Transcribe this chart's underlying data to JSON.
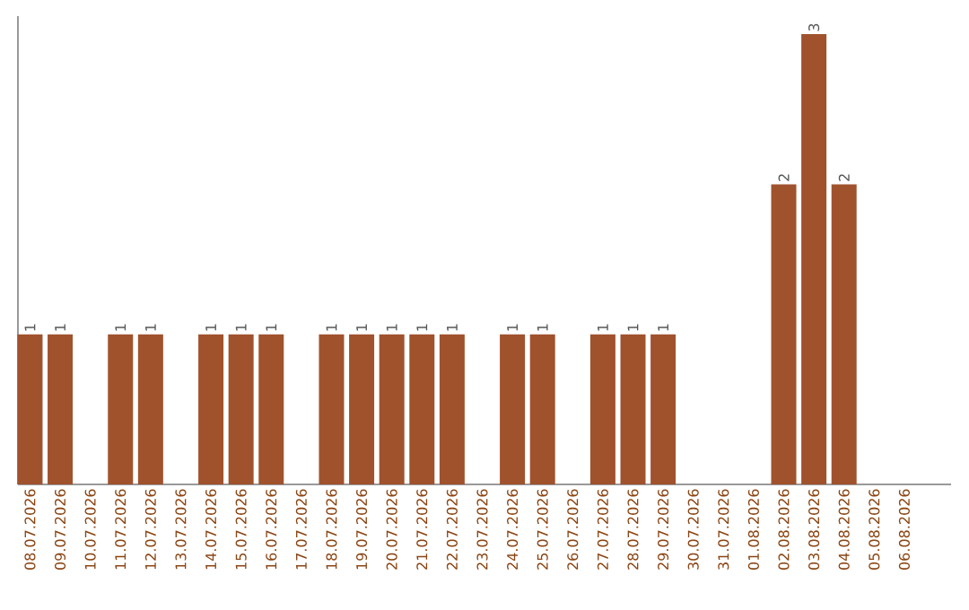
{
  "chart_data": {
    "type": "bar",
    "categories": [
      "08.07.2026",
      "09.07.2026",
      "10.07.2026",
      "11.07.2026",
      "12.07.2026",
      "13.07.2026",
      "14.07.2026",
      "15.07.2026",
      "16.07.2026",
      "17.07.2026",
      "18.07.2026",
      "19.07.2026",
      "20.07.2026",
      "21.07.2026",
      "22.07.2026",
      "23.07.2026",
      "24.07.2026",
      "25.07.2026",
      "26.07.2026",
      "27.07.2026",
      "28.07.2026",
      "29.07.2026",
      "30.07.2026",
      "31.07.2026",
      "01.08.2026",
      "02.08.2026",
      "03.08.2026",
      "04.08.2026",
      "05.08.2026",
      "06.08.2026"
    ],
    "values": [
      1,
      1,
      0,
      1,
      1,
      0,
      1,
      1,
      1,
      0,
      1,
      1,
      1,
      1,
      1,
      0,
      1,
      1,
      0,
      1,
      1,
      1,
      0,
      0,
      0,
      2,
      3,
      2,
      0,
      0
    ],
    "value_labels": [
      "1",
      "1",
      null,
      "1",
      "1",
      null,
      "1",
      "1",
      "1",
      null,
      "1",
      "1",
      "1",
      "1",
      "1",
      null,
      "1",
      "1",
      null,
      "1",
      "1",
      "1",
      null,
      null,
      null,
      "2",
      "3",
      "2",
      null,
      null
    ],
    "color": "#a0522d"
  }
}
